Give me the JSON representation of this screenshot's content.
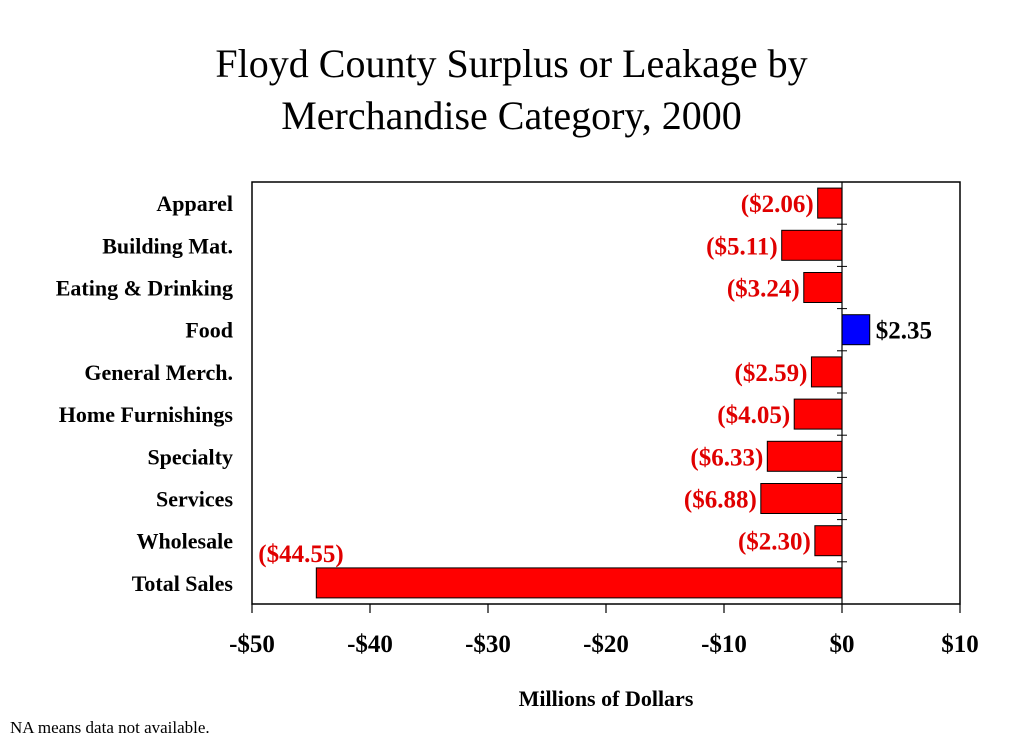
{
  "chart_data": {
    "type": "bar",
    "orientation": "horizontal",
    "title": "Floyd County Surplus or Leakage by Merchandise Category, 2000",
    "title_lines": [
      "Floyd County Surplus or Leakage by",
      "Merchandise Category, 2000"
    ],
    "xlabel": "Millions of Dollars",
    "ylabel": "",
    "categories": [
      "Apparel",
      "Building Mat.",
      "Eating & Drinking",
      "Food",
      "General Merch.",
      "Home Furnishings",
      "Specialty",
      "Services",
      "Wholesale",
      "Total Sales"
    ],
    "values": [
      -2.06,
      -5.11,
      -3.24,
      2.35,
      -2.59,
      -4.05,
      -6.33,
      -6.88,
      -2.3,
      -44.55
    ],
    "data_labels": [
      "($2.06)",
      "($5.11)",
      "($3.24)",
      "$2.35",
      "($2.59)",
      "($4.05)",
      "($6.33)",
      "($6.88)",
      "($2.30)",
      "($44.55)"
    ],
    "xlim": [
      -50,
      10
    ],
    "x_ticks": [
      -50,
      -40,
      -30,
      -20,
      -10,
      0,
      10
    ],
    "x_tick_labels": [
      "-$50",
      "-$40",
      "-$30",
      "-$20",
      "-$10",
      "$0",
      "$10"
    ],
    "grid": false,
    "legend": "none",
    "colors": {
      "negative_bar": "#ff0000",
      "positive_bar": "#0000ff",
      "negative_label": "#e00000",
      "positive_label": "#000000"
    }
  },
  "footnote": "NA means data not available."
}
